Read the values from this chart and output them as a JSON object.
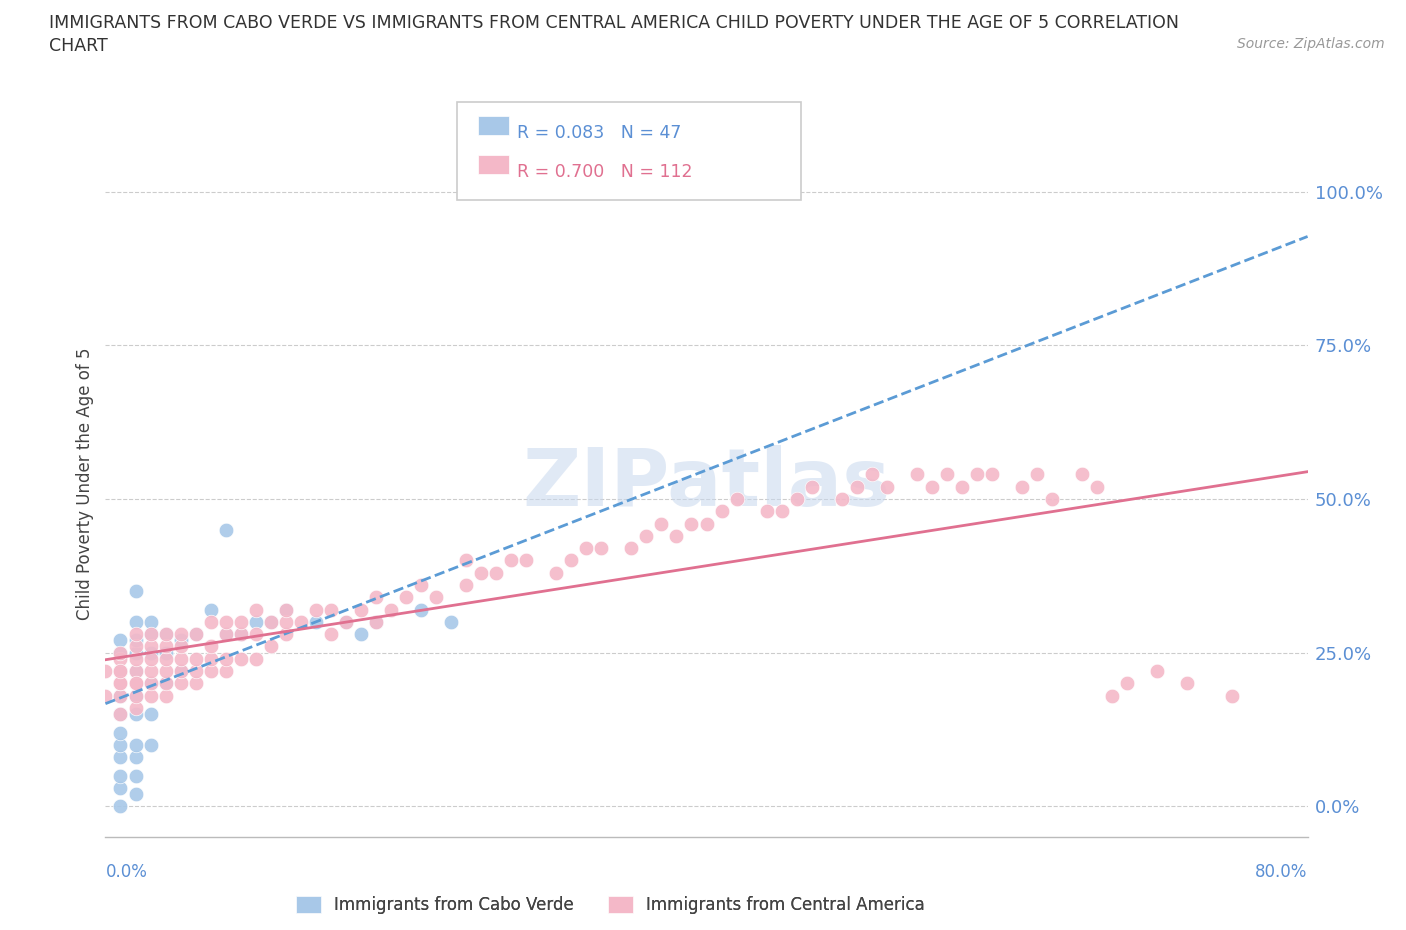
{
  "title_line1": "IMMIGRANTS FROM CABO VERDE VS IMMIGRANTS FROM CENTRAL AMERICA CHILD POVERTY UNDER THE AGE OF 5 CORRELATION",
  "title_line2": "CHART",
  "source": "Source: ZipAtlas.com",
  "ylabel": "Child Poverty Under the Age of 5",
  "yticks": [
    0.0,
    0.25,
    0.5,
    0.75,
    1.0
  ],
  "ytick_labels": [
    "0.0%",
    "25.0%",
    "50.0%",
    "75.0%",
    "100.0%"
  ],
  "xmin": 0.0,
  "xmax": 0.8,
  "ymin": -0.05,
  "ymax": 1.1,
  "cabo_verde_color": "#a8c8e8",
  "central_america_color": "#f4b8c8",
  "trendline_cabo_color": "#5b9bd5",
  "trendline_ca_color": "#e07090",
  "watermark": "ZIPatlas",
  "cabo_verde_x": [
    0.01,
    0.01,
    0.01,
    0.01,
    0.01,
    0.01,
    0.01,
    0.01,
    0.01,
    0.01,
    0.01,
    0.02,
    0.02,
    0.02,
    0.02,
    0.02,
    0.02,
    0.02,
    0.02,
    0.02,
    0.02,
    0.02,
    0.03,
    0.03,
    0.03,
    0.03,
    0.03,
    0.03,
    0.04,
    0.04,
    0.04,
    0.05,
    0.05,
    0.06,
    0.07,
    0.08,
    0.08,
    0.09,
    0.1,
    0.11,
    0.12,
    0.14,
    0.16,
    0.17,
    0.18,
    0.21,
    0.23
  ],
  "cabo_verde_y": [
    0.0,
    0.03,
    0.05,
    0.08,
    0.1,
    0.12,
    0.15,
    0.18,
    0.22,
    0.25,
    0.27,
    0.02,
    0.05,
    0.08,
    0.1,
    0.15,
    0.18,
    0.22,
    0.25,
    0.27,
    0.3,
    0.35,
    0.1,
    0.15,
    0.2,
    0.25,
    0.28,
    0.3,
    0.2,
    0.25,
    0.28,
    0.22,
    0.27,
    0.28,
    0.32,
    0.28,
    0.45,
    0.28,
    0.3,
    0.3,
    0.32,
    0.3,
    0.3,
    0.28,
    0.3,
    0.32,
    0.3
  ],
  "central_america_x": [
    0.0,
    0.0,
    0.01,
    0.01,
    0.01,
    0.01,
    0.01,
    0.01,
    0.01,
    0.01,
    0.02,
    0.02,
    0.02,
    0.02,
    0.02,
    0.02,
    0.02,
    0.02,
    0.03,
    0.03,
    0.03,
    0.03,
    0.03,
    0.03,
    0.04,
    0.04,
    0.04,
    0.04,
    0.04,
    0.04,
    0.05,
    0.05,
    0.05,
    0.05,
    0.05,
    0.06,
    0.06,
    0.06,
    0.06,
    0.07,
    0.07,
    0.07,
    0.07,
    0.08,
    0.08,
    0.08,
    0.08,
    0.09,
    0.09,
    0.09,
    0.1,
    0.1,
    0.1,
    0.11,
    0.11,
    0.12,
    0.12,
    0.12,
    0.13,
    0.14,
    0.15,
    0.15,
    0.16,
    0.17,
    0.18,
    0.18,
    0.19,
    0.2,
    0.21,
    0.22,
    0.24,
    0.24,
    0.25,
    0.26,
    0.27,
    0.28,
    0.3,
    0.31,
    0.32,
    0.33,
    0.35,
    0.36,
    0.37,
    0.38,
    0.39,
    0.4,
    0.41,
    0.42,
    0.44,
    0.45,
    0.46,
    0.47,
    0.49,
    0.5,
    0.51,
    0.52,
    0.54,
    0.55,
    0.56,
    0.57,
    0.58,
    0.59,
    0.61,
    0.62,
    0.63,
    0.65,
    0.66,
    0.67,
    0.68,
    0.7,
    0.72,
    0.75
  ],
  "central_america_y": [
    0.18,
    0.22,
    0.15,
    0.18,
    0.2,
    0.22,
    0.24,
    0.2,
    0.22,
    0.25,
    0.16,
    0.18,
    0.2,
    0.22,
    0.24,
    0.26,
    0.28,
    0.2,
    0.18,
    0.2,
    0.22,
    0.24,
    0.26,
    0.28,
    0.18,
    0.2,
    0.22,
    0.24,
    0.26,
    0.28,
    0.2,
    0.22,
    0.24,
    0.26,
    0.28,
    0.2,
    0.22,
    0.24,
    0.28,
    0.22,
    0.24,
    0.26,
    0.3,
    0.22,
    0.24,
    0.28,
    0.3,
    0.24,
    0.28,
    0.3,
    0.24,
    0.28,
    0.32,
    0.26,
    0.3,
    0.28,
    0.3,
    0.32,
    0.3,
    0.32,
    0.28,
    0.32,
    0.3,
    0.32,
    0.3,
    0.34,
    0.32,
    0.34,
    0.36,
    0.34,
    0.36,
    0.4,
    0.38,
    0.38,
    0.4,
    0.4,
    0.38,
    0.4,
    0.42,
    0.42,
    0.42,
    0.44,
    0.46,
    0.44,
    0.46,
    0.46,
    0.48,
    0.5,
    0.48,
    0.48,
    0.5,
    0.52,
    0.5,
    0.52,
    0.54,
    0.52,
    0.54,
    0.52,
    0.54,
    0.52,
    0.54,
    0.54,
    0.52,
    0.54,
    0.5,
    0.54,
    0.52,
    0.18,
    0.2,
    0.22,
    0.2,
    0.18
  ]
}
